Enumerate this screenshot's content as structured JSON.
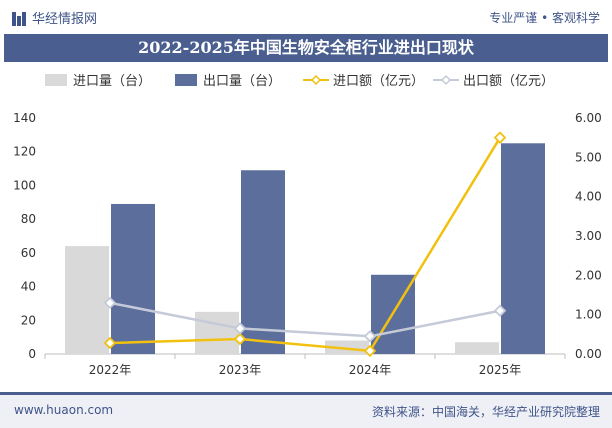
{
  "header": {
    "site_name": "华经情报网",
    "slogan": "专业严谨 • 客观科学"
  },
  "footer": {
    "site_url": "www.huaon.com",
    "source": "资料来源：中国海关，华经产业研究院整理"
  },
  "colors": {
    "brand": "#4a5f8f",
    "import_qty": "#d9d9d9",
    "export_qty": "#5b6e9c",
    "import_amt": "#f2c10f",
    "export_amt": "#c5cad8"
  },
  "chart_data": {
    "type": "bar",
    "title": "2022-2025年中国生物安全柜行业进出口现状",
    "categories": [
      "2022年",
      "2023年",
      "2024年",
      "2025年"
    ],
    "series": [
      {
        "name": "进口量（台）",
        "type": "bar",
        "axis": "left",
        "values": [
          64,
          25,
          8,
          7
        ]
      },
      {
        "name": "出口量（台）",
        "type": "bar",
        "axis": "left",
        "values": [
          89,
          109,
          47,
          125
        ]
      },
      {
        "name": "进口额（亿元）",
        "type": "line",
        "axis": "right",
        "values": [
          0.28,
          0.38,
          0.08,
          5.5
        ]
      },
      {
        "name": "出口额（亿元）",
        "type": "line",
        "axis": "right",
        "values": [
          1.3,
          0.65,
          0.45,
          1.1
        ]
      }
    ],
    "y_left": {
      "min": 0,
      "max": 140,
      "ticks": [
        "0",
        "20",
        "40",
        "60",
        "80",
        "100",
        "120",
        "140"
      ]
    },
    "y_right": {
      "min": 0,
      "max": 6,
      "ticks": [
        "0.00",
        "1.00",
        "2.00",
        "3.00",
        "4.00",
        "5.00",
        "6.00"
      ]
    },
    "legend_position": "top",
    "grid": false
  }
}
